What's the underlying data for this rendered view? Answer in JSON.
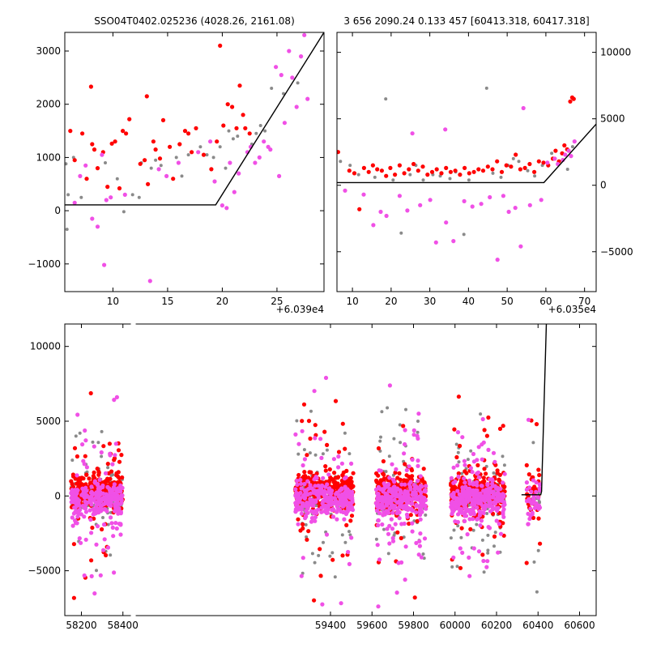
{
  "colors": {
    "red": "#ff0000",
    "magenta": "#f050e6",
    "gray": "#8a8a8a",
    "model": "#000000"
  },
  "chart_data": [
    {
      "panel": "top-left",
      "type": "scatter",
      "title": "SSO04T0402.025236 (4028.26, 2161.08)",
      "x_offset_label": "+6.039e4",
      "xlim": [
        5.6,
        29.3
      ],
      "ylim": [
        -1520,
        3350
      ],
      "xticks": [
        10,
        15,
        20,
        25
      ],
      "yticks": [
        -1000,
        0,
        1000,
        2000,
        3000
      ],
      "model_line": {
        "x": [
          5.6,
          19.4,
          29.3
        ],
        "y": [
          110,
          110,
          3350
        ]
      },
      "series": [
        {
          "color": "red",
          "points": [
            [
              6.1,
              1500
            ],
            [
              6.5,
              950
            ],
            [
              7.2,
              1450
            ],
            [
              7.6,
              600
            ],
            [
              8.0,
              2330
            ],
            [
              8.1,
              1250
            ],
            [
              8.3,
              1150
            ],
            [
              8.6,
              800
            ],
            [
              9.1,
              1100
            ],
            [
              9.5,
              450
            ],
            [
              9.9,
              1260
            ],
            [
              10.2,
              1300
            ],
            [
              10.6,
              420
            ],
            [
              10.9,
              1500
            ],
            [
              11.2,
              1450
            ],
            [
              11.5,
              1720
            ],
            [
              12.5,
              880
            ],
            [
              12.9,
              950
            ],
            [
              13.1,
              2150
            ],
            [
              13.2,
              500
            ],
            [
              13.7,
              1300
            ],
            [
              13.9,
              1150
            ],
            [
              14.3,
              980
            ],
            [
              14.6,
              1700
            ],
            [
              15.2,
              1200
            ],
            [
              15.5,
              600
            ],
            [
              16.1,
              1250
            ],
            [
              16.6,
              1500
            ],
            [
              16.9,
              1450
            ],
            [
              17.2,
              1100
            ],
            [
              17.6,
              1550
            ],
            [
              18.3,
              1050
            ],
            [
              19.0,
              780
            ],
            [
              19.5,
              1300
            ],
            [
              19.8,
              3100
            ],
            [
              20.1,
              1600
            ],
            [
              20.5,
              2000
            ],
            [
              20.9,
              1950
            ],
            [
              21.3,
              1550
            ],
            [
              21.6,
              2350
            ],
            [
              21.9,
              1800
            ],
            [
              22.1,
              1550
            ],
            [
              22.5,
              1450
            ]
          ]
        },
        {
          "color": "magenta",
          "points": [
            [
              6.5,
              150
            ],
            [
              7.0,
              650
            ],
            [
              7.5,
              850
            ],
            [
              8.1,
              -150
            ],
            [
              8.6,
              -300
            ],
            [
              9.0,
              1050
            ],
            [
              9.4,
              200
            ],
            [
              9.8,
              250
            ],
            [
              9.2,
              -1020
            ],
            [
              11.1,
              300
            ],
            [
              13.4,
              -1320
            ],
            [
              14.2,
              780
            ],
            [
              14.9,
              650
            ],
            [
              16.0,
              900
            ],
            [
              17.8,
              1100
            ],
            [
              18.9,
              1300
            ],
            [
              19.3,
              550
            ],
            [
              20.0,
              100
            ],
            [
              20.4,
              50
            ],
            [
              20.7,
              900
            ],
            [
              21.1,
              350
            ],
            [
              21.5,
              700
            ],
            [
              22.3,
              1100
            ],
            [
              22.6,
              1200
            ],
            [
              23.0,
              900
            ],
            [
              23.4,
              1000
            ],
            [
              23.8,
              1300
            ],
            [
              24.2,
              1200
            ],
            [
              24.4,
              1150
            ],
            [
              24.9,
              2700
            ],
            [
              25.2,
              650
            ],
            [
              25.4,
              2550
            ],
            [
              25.7,
              1650
            ],
            [
              26.1,
              3000
            ],
            [
              26.4,
              2500
            ],
            [
              26.8,
              1950
            ],
            [
              27.2,
              2900
            ],
            [
              27.5,
              3300
            ],
            [
              27.8,
              2100
            ]
          ]
        },
        {
          "color": "gray",
          "points": [
            [
              5.7,
              880
            ],
            [
              5.9,
              300
            ],
            [
              5.8,
              -350
            ],
            [
              6.4,
              1000
            ],
            [
              7.1,
              250
            ],
            [
              9.3,
              900
            ],
            [
              10.4,
              600
            ],
            [
              11.0,
              -20
            ],
            [
              11.8,
              300
            ],
            [
              12.4,
              250
            ],
            [
              12.6,
              900
            ],
            [
              13.5,
              800
            ],
            [
              13.9,
              950
            ],
            [
              14.4,
              850
            ],
            [
              15.8,
              1000
            ],
            [
              16.3,
              650
            ],
            [
              16.9,
              1050
            ],
            [
              18.0,
              1200
            ],
            [
              18.6,
              1050
            ],
            [
              19.2,
              1000
            ],
            [
              19.8,
              1200
            ],
            [
              20.3,
              800
            ],
            [
              20.6,
              1500
            ],
            [
              21.0,
              1350
            ],
            [
              21.4,
              1400
            ],
            [
              22.7,
              1250
            ],
            [
              23.1,
              1450
            ],
            [
              23.5,
              1600
            ],
            [
              23.9,
              1500
            ],
            [
              24.5,
              2300
            ],
            [
              25.6,
              2200
            ],
            [
              26.9,
              2400
            ]
          ]
        }
      ]
    },
    {
      "panel": "top-right",
      "type": "scatter",
      "title": "3 656 2090.24 0.133 457 [60413.318, 60417.318]",
      "x_offset_label": "+6.035e4",
      "xlim": [
        6,
        73
      ],
      "ylim": [
        -8000,
        11500
      ],
      "xticks": [
        10,
        20,
        30,
        40,
        50,
        60,
        70
      ],
      "yticks": [
        -5000,
        0,
        5000,
        10000
      ],
      "model_line": {
        "x": [
          6,
          59.5,
          73
        ],
        "y": [
          200,
          200,
          4600
        ]
      },
      "series": [
        {
          "color": "red",
          "points": [
            [
              6.3,
              2500
            ],
            [
              9.2,
              1100
            ],
            [
              10.5,
              900
            ],
            [
              11.8,
              -1800
            ],
            [
              13.0,
              1300
            ],
            [
              14.2,
              1000
            ],
            [
              15.3,
              1500
            ],
            [
              16.4,
              1200
            ],
            [
              17.6,
              1100
            ],
            [
              18.7,
              700
            ],
            [
              19.8,
              1300
            ],
            [
              21.0,
              800
            ],
            [
              22.2,
              1500
            ],
            [
              23.4,
              900
            ],
            [
              24.6,
              1200
            ],
            [
              25.8,
              1600
            ],
            [
              27.0,
              1100
            ],
            [
              28.2,
              1400
            ],
            [
              29.4,
              800
            ],
            [
              30.6,
              1000
            ],
            [
              31.8,
              1200
            ],
            [
              33.0,
              900
            ],
            [
              34.2,
              1300
            ],
            [
              35.4,
              1000
            ],
            [
              36.6,
              1100
            ],
            [
              37.8,
              800
            ],
            [
              39.0,
              1300
            ],
            [
              40.2,
              900
            ],
            [
              41.4,
              1000
            ],
            [
              42.6,
              1200
            ],
            [
              43.8,
              1100
            ],
            [
              45.0,
              1400
            ],
            [
              46.2,
              1200
            ],
            [
              47.4,
              1800
            ],
            [
              48.6,
              1000
            ],
            [
              49.8,
              1500
            ],
            [
              51.0,
              1400
            ],
            [
              52.2,
              2300
            ],
            [
              53.4,
              1200
            ],
            [
              54.6,
              1300
            ],
            [
              55.8,
              1600
            ],
            [
              57.0,
              1000
            ],
            [
              58.2,
              1800
            ],
            [
              59.4,
              1700
            ],
            [
              60.6,
              1500
            ],
            [
              61.8,
              2000
            ],
            [
              62.5,
              2600
            ],
            [
              63.4,
              1800
            ],
            [
              64.2,
              2400
            ],
            [
              64.8,
              3000
            ],
            [
              65.5,
              2700
            ],
            [
              66.3,
              6300
            ],
            [
              66.8,
              6600
            ],
            [
              67.2,
              6500
            ]
          ]
        },
        {
          "color": "magenta",
          "points": [
            [
              8.1,
              -400
            ],
            [
              12.9,
              -700
            ],
            [
              15.4,
              -3000
            ],
            [
              17.3,
              -2000
            ],
            [
              18.8,
              -2300
            ],
            [
              22.2,
              -800
            ],
            [
              24.2,
              -1900
            ],
            [
              25.5,
              3900
            ],
            [
              27.5,
              -1500
            ],
            [
              30.1,
              -1100
            ],
            [
              31.6,
              -4300
            ],
            [
              34.0,
              4200
            ],
            [
              34.2,
              -2800
            ],
            [
              36.1,
              -4200
            ],
            [
              38.9,
              -1200
            ],
            [
              41.0,
              -1600
            ],
            [
              43.3,
              -1400
            ],
            [
              45.5,
              -900
            ],
            [
              47.5,
              -5600
            ],
            [
              49.0,
              -800
            ],
            [
              50.4,
              -2000
            ],
            [
              52.1,
              -1700
            ],
            [
              53.5,
              -4600
            ],
            [
              54.2,
              5800
            ],
            [
              55.9,
              -1500
            ],
            [
              58.8,
              -1100
            ],
            [
              60.4,
              1700
            ],
            [
              62.3,
              2000
            ],
            [
              63.1,
              1600
            ],
            [
              64.4,
              1900
            ],
            [
              65.0,
              2300
            ],
            [
              65.9,
              2600
            ],
            [
              66.5,
              2200
            ],
            [
              67.4,
              3300
            ]
          ]
        },
        {
          "color": "gray",
          "points": [
            [
              6.9,
              1800
            ],
            [
              9.4,
              1500
            ],
            [
              11.6,
              800
            ],
            [
              15.8,
              600
            ],
            [
              18.6,
              6500
            ],
            [
              20.5,
              400
            ],
            [
              22.6,
              -3600
            ],
            [
              24.9,
              800
            ],
            [
              26.4,
              1500
            ],
            [
              28.3,
              400
            ],
            [
              30.8,
              800
            ],
            [
              32.7,
              700
            ],
            [
              35.2,
              500
            ],
            [
              36.7,
              1000
            ],
            [
              38.8,
              -3700
            ],
            [
              40.1,
              400
            ],
            [
              42.5,
              1200
            ],
            [
              44.7,
              7300
            ],
            [
              46.3,
              900
            ],
            [
              48.4,
              600
            ],
            [
              50.2,
              1500
            ],
            [
              51.6,
              2000
            ],
            [
              53.0,
              1800
            ],
            [
              55.3,
              1100
            ],
            [
              57.1,
              700
            ],
            [
              59.1,
              1500
            ],
            [
              61.5,
              2400
            ],
            [
              63.2,
              1700
            ],
            [
              65.6,
              1200
            ],
            [
              66.9,
              2900
            ]
          ]
        }
      ]
    },
    {
      "panel": "bottom",
      "type": "scatter",
      "xlim": [
        58120,
        60680
      ],
      "ylim": [
        -8000,
        11500
      ],
      "xticks": [
        58200,
        58400,
        59400,
        59600,
        59800,
        60000,
        60200,
        60400,
        60600
      ],
      "yticks": [
        -5000,
        0,
        5000,
        10000
      ],
      "axis_break_x": 58450,
      "model_line": {
        "x": [
          60320,
          60395,
          60413,
          60417,
          60440
        ],
        "y": [
          80,
          80,
          80,
          300,
          11500
        ]
      },
      "seasons": [
        {
          "x_start": 58150,
          "x_end": 58400,
          "density": 600
        },
        {
          "x_start": 59230,
          "x_end": 59510,
          "density": 650
        },
        {
          "x_start": 59620,
          "x_end": 59860,
          "density": 650
        },
        {
          "x_start": 59980,
          "x_end": 60240,
          "density": 700
        },
        {
          "x_start": 60345,
          "x_end": 60410,
          "density": 90
        }
      ]
    }
  ]
}
